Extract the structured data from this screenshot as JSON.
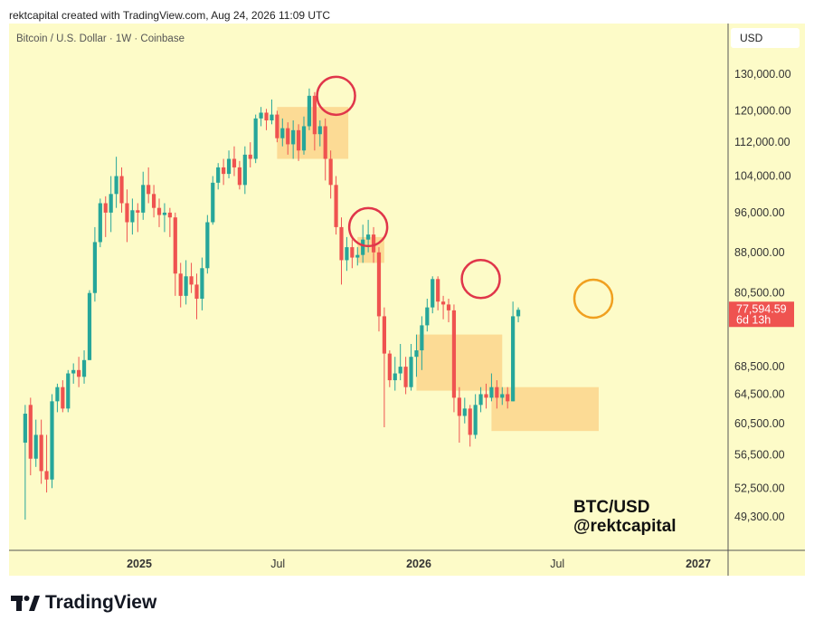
{
  "header": {
    "text": "rektcapital created with TradingView.com, Aug 24, 2026 11:09 UTC"
  },
  "chart": {
    "symbol": "Bitcoin / U.S. Dollar · 1W · Coinbase",
    "currency": "USD"
  },
  "brand": {
    "name": "TradingView"
  },
  "colors": {
    "up": "#26a69a",
    "down": "#ef5350",
    "background": "#fdfbc8",
    "zone": "#fbd58c",
    "circle_red": "#e0364a",
    "circle_orange": "#f0a020"
  },
  "chart_data": {
    "type": "candlestick",
    "title": "",
    "symbol": "Bitcoin / U.S. Dollar · 1W · Coinbase",
    "currency": "USD",
    "y_ticks": [
      "130,000.00",
      "120,000.00",
      "112,000.00",
      "104,000.00",
      "96,000.00",
      "88,000.00",
      "80,500.00",
      "68,500.00",
      "64,500.00",
      "60,500.00",
      "56,500.00",
      "52,500.00",
      "49,300.00"
    ],
    "x_ticks": [
      {
        "label": "2025",
        "bold": true,
        "date": "2025-01-01"
      },
      {
        "label": "Jul",
        "bold": false,
        "date": "2025-07-01"
      },
      {
        "label": "2026",
        "bold": true,
        "date": "2026-01-01"
      },
      {
        "label": "Jul",
        "bold": false,
        "date": "2026-07-01"
      },
      {
        "label": "2027",
        "bold": true,
        "date": "2027-01-01"
      }
    ],
    "last_price": {
      "value": "77,594.59",
      "countdown": "6d 13h"
    },
    "watermark": [
      "BTC/USD",
      "@rektcapital"
    ],
    "first_week": "2024-08-05",
    "candles": [
      [
        58000,
        61800,
        49000,
        63000
      ],
      [
        63000,
        56000,
        54000,
        64000
      ],
      [
        56000,
        59000,
        55000,
        61000
      ],
      [
        59000,
        54500,
        53000,
        61000
      ],
      [
        54500,
        53500,
        52000,
        59000
      ],
      [
        53500,
        63500,
        52500,
        64500
      ],
      [
        63500,
        65500,
        62000,
        66000
      ],
      [
        65500,
        62500,
        62000,
        66500
      ],
      [
        62500,
        67500,
        62000,
        68000
      ],
      [
        67500,
        68000,
        66000,
        69000
      ],
      [
        68000,
        67000,
        65500,
        70000
      ],
      [
        67000,
        69500,
        66000,
        71000
      ],
      [
        69500,
        80500,
        69500,
        81000
      ],
      [
        80500,
        90000,
        79000,
        93000
      ],
      [
        90000,
        98000,
        89000,
        99000
      ],
      [
        98000,
        96000,
        91000,
        99500
      ],
      [
        96000,
        100000,
        92000,
        104000
      ],
      [
        100000,
        104000,
        97000,
        108500
      ],
      [
        104000,
        98000,
        96000,
        106000
      ],
      [
        98000,
        94000,
        90000,
        101000
      ],
      [
        94000,
        96500,
        91500,
        99000
      ],
      [
        96500,
        96000,
        92000,
        98000
      ],
      [
        96000,
        102000,
        94500,
        105000
      ],
      [
        102000,
        100000,
        98000,
        106000
      ],
      [
        100000,
        97000,
        95000,
        102000
      ],
      [
        97000,
        95500,
        93000,
        99000
      ],
      [
        95500,
        96000,
        92000,
        98000
      ],
      [
        96000,
        95000,
        91000,
        97000
      ],
      [
        95000,
        84000,
        80000,
        96000
      ],
      [
        84000,
        80000,
        78000,
        86000
      ],
      [
        80000,
        83500,
        78500,
        86500
      ],
      [
        83500,
        82000,
        80500,
        86000
      ],
      [
        82000,
        79500,
        76000,
        84000
      ],
      [
        79500,
        85000,
        77500,
        87000
      ],
      [
        85000,
        94000,
        84000,
        95500
      ],
      [
        94000,
        102500,
        93500,
        104000
      ],
      [
        102500,
        106000,
        101000,
        107000
      ],
      [
        106000,
        104500,
        102000,
        108000
      ],
      [
        104500,
        108000,
        103500,
        110000
      ],
      [
        108000,
        106000,
        104000,
        111000
      ],
      [
        106000,
        102000,
        101000,
        107500
      ],
      [
        102000,
        109000,
        100000,
        111000
      ],
      [
        109000,
        108000,
        106000,
        112000
      ],
      [
        108000,
        118000,
        107000,
        119000
      ],
      [
        118000,
        119500,
        116000,
        121000
      ],
      [
        119500,
        117500,
        115000,
        120500
      ],
      [
        117500,
        119000,
        116500,
        123000
      ],
      [
        119000,
        113000,
        112000,
        120000
      ],
      [
        113000,
        115500,
        111000,
        118000
      ],
      [
        115500,
        111500,
        109000,
        117000
      ],
      [
        111500,
        115000,
        108000,
        117500
      ],
      [
        115000,
        110000,
        107500,
        116500
      ],
      [
        110000,
        116000,
        109000,
        118500
      ],
      [
        116000,
        124000,
        115000,
        126000
      ],
      [
        124000,
        114000,
        110000,
        125000
      ],
      [
        114000,
        116000,
        111000,
        117500
      ],
      [
        116000,
        108000,
        103000,
        118000
      ],
      [
        108000,
        102000,
        99000,
        110000
      ],
      [
        102000,
        93000,
        91500,
        104000
      ],
      [
        93000,
        86500,
        82000,
        95000
      ],
      [
        86500,
        89000,
        84500,
        91000
      ],
      [
        89000,
        87000,
        85000,
        90500
      ],
      [
        87000,
        87500,
        85500,
        89000
      ],
      [
        87500,
        90500,
        86000,
        93500
      ],
      [
        90500,
        91500,
        88000,
        94500
      ],
      [
        91500,
        88000,
        86000,
        93000
      ],
      [
        88000,
        76500,
        74000,
        89000
      ],
      [
        76500,
        70500,
        60000,
        78000
      ],
      [
        70500,
        66500,
        65500,
        71000
      ],
      [
        66500,
        67500,
        65000,
        70000
      ],
      [
        67500,
        68500,
        66500,
        72000
      ],
      [
        68500,
        65500,
        64500,
        70000
      ],
      [
        65500,
        70000,
        65000,
        72000
      ],
      [
        70000,
        71000,
        67000,
        73500
      ],
      [
        71000,
        75000,
        68000,
        76500
      ],
      [
        75000,
        78000,
        74000,
        79500
      ],
      [
        78000,
        83000,
        77000,
        83500
      ],
      [
        83000,
        79000,
        77500,
        83500
      ],
      [
        79000,
        78500,
        76000,
        80000
      ],
      [
        78500,
        77500,
        75500,
        79500
      ],
      [
        77500,
        64000,
        62000,
        78500
      ],
      [
        64000,
        61500,
        58000,
        65500
      ],
      [
        61500,
        62500,
        60500,
        64000
      ],
      [
        62500,
        59000,
        57500,
        63000
      ],
      [
        59000,
        63000,
        58500,
        64500
      ],
      [
        63000,
        64500,
        62000,
        65500
      ],
      [
        64500,
        64000,
        62500,
        66000
      ],
      [
        64000,
        65500,
        63500,
        67500
      ],
      [
        65500,
        64000,
        62500,
        66500
      ],
      [
        64000,
        64500,
        63000,
        65500
      ],
      [
        64500,
        63500,
        62500,
        65500
      ],
      [
        63500,
        76500,
        63500,
        79000
      ],
      [
        76500,
        77594.59,
        75500,
        78000
      ]
    ]
  }
}
